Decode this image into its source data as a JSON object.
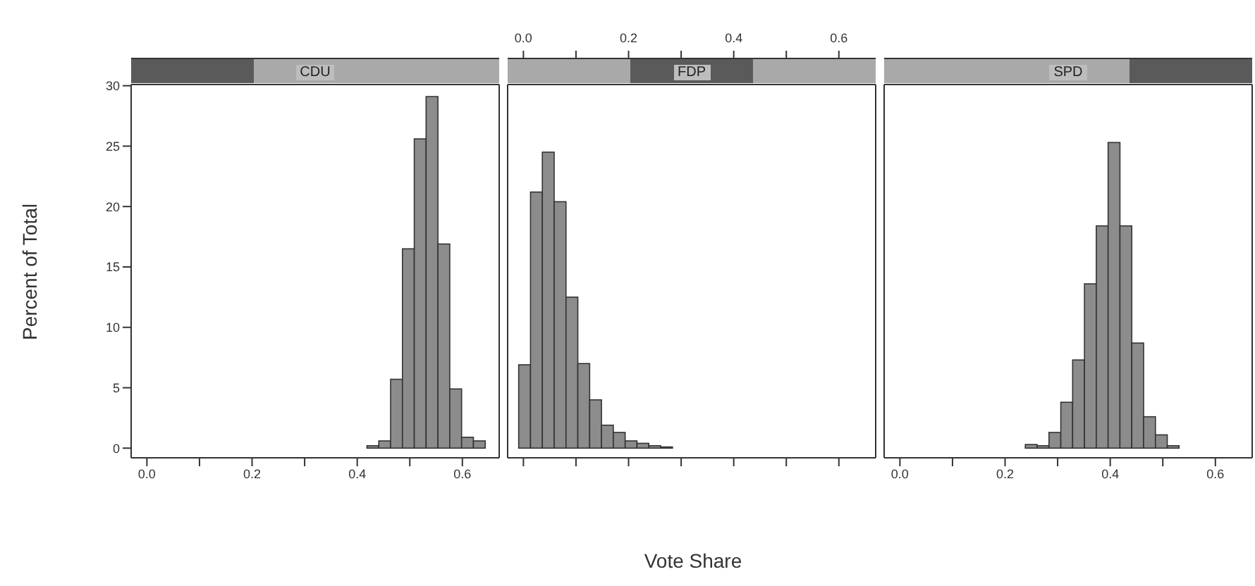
{
  "chart_data": [
    {
      "type": "histogram",
      "title": "CDU",
      "ylabel": "Percent of Total",
      "color": "#8c8c8c",
      "bins": [
        -0.009,
        0.0135,
        0.036,
        0.0585,
        0.081,
        0.1035,
        0.126,
        0.1485,
        0.171,
        0.1935,
        0.216,
        0.2385,
        0.261,
        0.2835,
        0.306,
        0.3285,
        0.351,
        0.3735,
        0.396,
        0.4185,
        0.441,
        0.4635,
        0.486,
        0.5085,
        0.531,
        0.5535,
        0.576,
        0.5985,
        0.621,
        0.6435
      ],
      "values": [
        0,
        0,
        0,
        0,
        0,
        0,
        0,
        0,
        0,
        0,
        0,
        0,
        0,
        0,
        0,
        0,
        0,
        0,
        0,
        0.2,
        0.6,
        5.7,
        16.5,
        25.6,
        29.1,
        16.9,
        4.9,
        0.9,
        0.6
      ],
      "xlim": [
        -0.03,
        0.67
      ],
      "xticks": [
        {
          "value": 0,
          "label": "0.0"
        },
        {
          "value": 0.1,
          "label": null
        },
        0.2,
        {
          "value": 0.3,
          "label": null
        },
        0.4,
        {
          "value": 0.5,
          "label": null
        },
        0.6
      ],
      "ylim": [
        -0.8,
        30.1
      ],
      "yticks": [
        0,
        5,
        10,
        15,
        20,
        25,
        30
      ],
      "grid": false,
      "legend": false
    },
    {
      "type": "histogram",
      "title": "FDP",
      "xlabel": "Vote Share",
      "color": "#8c8c8c",
      "bins": [
        -0.009,
        0.0135,
        0.036,
        0.0585,
        0.081,
        0.1035,
        0.126,
        0.1485,
        0.171,
        0.1935,
        0.216,
        0.2385,
        0.261,
        0.2835,
        0.306,
        0.3285,
        0.351,
        0.3735,
        0.396,
        0.4185,
        0.441,
        0.4635,
        0.486,
        0.5085,
        0.531,
        0.5535,
        0.576,
        0.5985,
        0.621,
        0.6435
      ],
      "values": [
        6.9,
        21.2,
        24.5,
        20.4,
        12.5,
        7.0,
        4.0,
        1.9,
        1.3,
        0.6,
        0.4,
        0.2,
        0.1,
        0,
        0,
        0,
        0,
        0,
        0,
        0,
        0,
        0,
        0,
        0,
        0,
        0,
        0,
        0,
        0
      ],
      "xlim": [
        -0.03,
        0.67
      ],
      "xticks": [
        {
          "value": 0,
          "label": "0.0"
        },
        {
          "value": 0.1,
          "label": null
        },
        0.2,
        {
          "value": 0.3,
          "label": null
        },
        0.4,
        {
          "value": 0.5,
          "label": null
        },
        0.6
      ],
      "ylim": [
        -0.8,
        30.1
      ],
      "yticks": [
        0,
        5,
        10,
        15,
        20,
        25,
        30
      ],
      "tick_labels": "x",
      "grid": false,
      "legend": false
    },
    {
      "type": "histogram",
      "title": "SPD",
      "color": "#8c8c8c",
      "bins": [
        -0.009,
        0.0135,
        0.036,
        0.0585,
        0.081,
        0.1035,
        0.126,
        0.1485,
        0.171,
        0.1935,
        0.216,
        0.2385,
        0.261,
        0.2835,
        0.306,
        0.3285,
        0.351,
        0.3735,
        0.396,
        0.4185,
        0.441,
        0.4635,
        0.486,
        0.5085,
        0.531,
        0.5535,
        0.576,
        0.5985,
        0.621,
        0.6435
      ],
      "values": [
        0,
        0,
        0,
        0,
        0,
        0,
        0,
        0,
        0,
        0,
        0,
        0.3,
        0.2,
        1.3,
        3.8,
        7.3,
        13.6,
        18.4,
        25.3,
        18.4,
        8.7,
        2.6,
        1.1,
        0.2,
        0,
        0,
        0,
        0,
        0
      ],
      "xlim": [
        -0.03,
        0.67
      ],
      "xticks": [
        {
          "value": 0,
          "label": "0.0"
        },
        {
          "value": 0.1,
          "label": null
        },
        0.2,
        {
          "value": 0.3,
          "label": null
        },
        0.4,
        {
          "value": 0.5,
          "label": null
        },
        0.6
      ],
      "ylim": [
        -0.8,
        30.1
      ],
      "yticks": [
        0,
        5,
        10,
        15,
        20,
        25,
        30
      ],
      "tick_labels": "x",
      "grid": false,
      "legend": false
    }
  ]
}
